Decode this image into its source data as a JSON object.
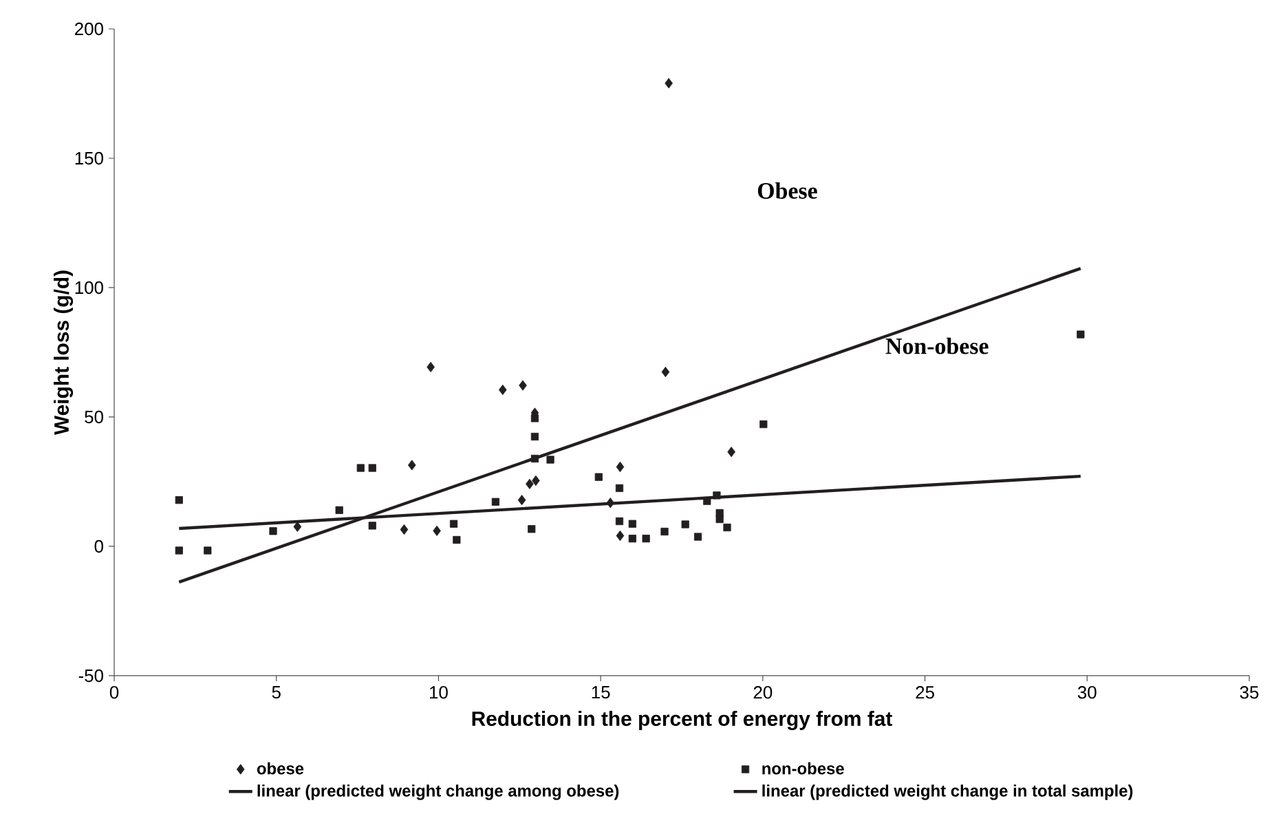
{
  "chart_data": {
    "type": "scatter",
    "xlabel": "Reduction in the percent of energy from fat",
    "ylabel": "Weight loss (g/d)",
    "xlim": [
      0,
      35
    ],
    "xticks": [
      0,
      5,
      10,
      15,
      20,
      25,
      30,
      35
    ],
    "ylim": [
      -50,
      200
    ],
    "yticks": [
      -50,
      0,
      50,
      100,
      150,
      200
    ],
    "grid": false,
    "legend": "bottom",
    "series": [
      {
        "name": "obese",
        "marker": "diamond",
        "color": "#231f20",
        "x": [
          5.65,
          8.94,
          9.18,
          9.76,
          9.95,
          11.98,
          12.6,
          12.57,
          12.97,
          12.81,
          13.0,
          15.3,
          15.6,
          15.6,
          17.0,
          17.1,
          19.03
        ],
        "values": [
          7.6,
          6.5,
          31.4,
          69.3,
          6,
          60.5,
          62.2,
          17.9,
          51.6,
          24.1,
          25.4,
          16.8,
          30.7,
          4.1,
          67.4,
          179,
          36.5
        ]
      },
      {
        "name": "non-obese",
        "marker": "square",
        "color": "#231f20",
        "x": [
          2,
          2,
          2.88,
          4.9,
          6.94,
          7.6,
          7.96,
          7.96,
          10.47,
          10.56,
          11.76,
          12.97,
          12.97,
          12.97,
          13.45,
          12.87,
          14.94,
          15.58,
          15.58,
          15.98,
          15.98,
          16.4,
          16.97,
          17.61,
          18.0,
          18.28,
          18.58,
          18.67,
          18.67,
          18.9,
          20.02,
          29.8
        ],
        "values": [
          17.9,
          -1.6,
          -1.6,
          5.9,
          14,
          30.3,
          30.3,
          8,
          8.7,
          2.5,
          17.2,
          49.5,
          42.4,
          33.9,
          33.5,
          6.7,
          26.8,
          22.5,
          9.7,
          8.7,
          3.0,
          3.0,
          5.7,
          8.5,
          3.7,
          17.5,
          19.7,
          12.9,
          10.5,
          7.3,
          47.2,
          81.9
        ]
      },
      {
        "name": "linear (predicted weight change among obese)",
        "type": "line",
        "marker": "none",
        "line_style": "solid",
        "color": "#231f20",
        "x": [
          2,
          29.8
        ],
        "values": [
          -13.8,
          107.4
        ]
      },
      {
        "name": "linear (predicted weight change in total sample)",
        "type": "line",
        "marker": "none",
        "line_style": "solid",
        "color": "#231f20",
        "x": [
          2,
          29.8
        ],
        "values": [
          6.9,
          27.1
        ]
      }
    ],
    "annotations": [
      "Obese",
      "Non-obese"
    ]
  }
}
